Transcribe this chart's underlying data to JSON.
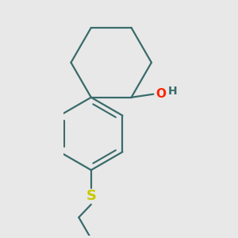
{
  "background_color": "#e8e8e8",
  "bond_color": "#3a6b6b",
  "bond_width": 1.6,
  "S_color": "#c8c800",
  "O_color": "#ff2200",
  "H_color": "#3a6b6b",
  "label_OH": "OH",
  "label_H": "H",
  "label_S": "S",
  "figsize": [
    3.0,
    3.0
  ],
  "dpi": 100
}
